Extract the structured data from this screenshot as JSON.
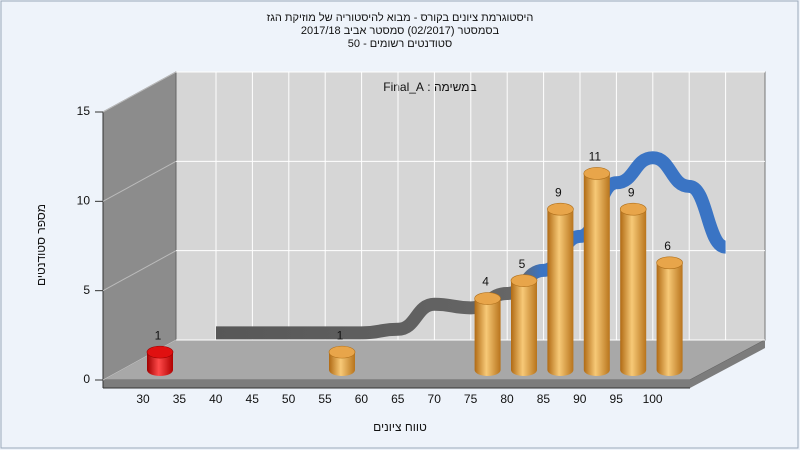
{
  "chart_data": {
    "type": "bar",
    "title": "היסטוגרמת ציונים בקורס - מבוא להיסטוריה של מוזיקת הגז",
    "subtitle": "בסמסטר  (02/2017)  סמסטר אביב 2017/18",
    "subtitle2": "סטודנטים רשומים - 50",
    "annotation": "במשימה : Final_A",
    "x_label": "טווח ציונים",
    "y_label": "מספר סטודנטים",
    "categories": [
      "30",
      "35",
      "40",
      "45",
      "50",
      "55",
      "60",
      "65",
      "70",
      "75",
      "80",
      "85",
      "90",
      "95",
      "100"
    ],
    "values": [
      1,
      null,
      null,
      null,
      null,
      1,
      null,
      null,
      null,
      4,
      5,
      9,
      11,
      9,
      6
    ],
    "colors": [
      "#e01010",
      null,
      null,
      null,
      null,
      "#e8a54a",
      null,
      null,
      null,
      "#e8a54a",
      "#e8a54a",
      "#e8a54a",
      "#e8a54a",
      "#e8a54a",
      "#e8a54a"
    ],
    "curve": [
      0.4,
      0.4,
      0.4,
      0.4,
      0.4,
      0.6,
      2.0,
      1.8,
      2.6,
      3.9,
      5.8,
      8.8,
      10.2,
      8.6,
      5.2
    ],
    "curve_color": "#3a74c4",
    "ylim": [
      0,
      15
    ],
    "yticks": [
      0,
      5,
      10,
      15
    ],
    "grid": true
  }
}
